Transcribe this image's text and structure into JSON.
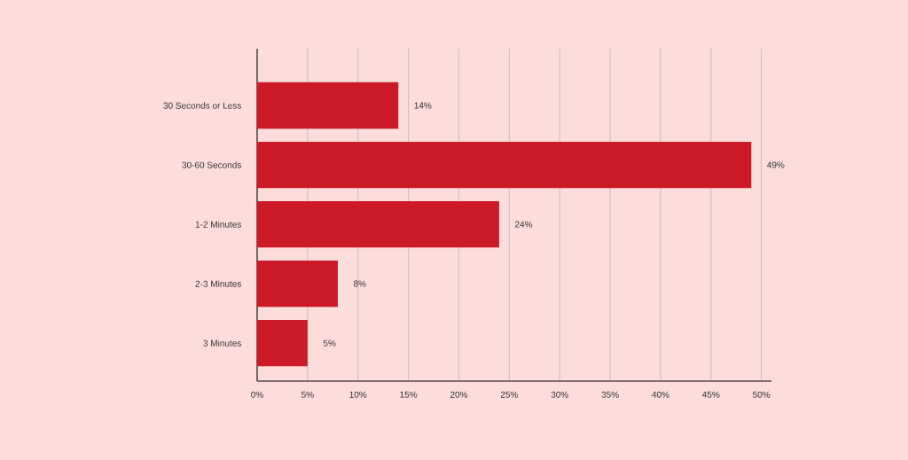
{
  "chart_data": {
    "type": "bar",
    "orientation": "horizontal",
    "categories": [
      "30 Seconds or Less",
      "30-60 Seconds",
      "1-2 Minutes",
      "2-3 Minutes",
      "3 Minutes"
    ],
    "values": [
      14,
      49,
      24,
      8,
      5
    ],
    "value_labels": [
      "14%",
      "49%",
      "24%",
      "8%",
      "5%"
    ],
    "color": "#cc1a26",
    "xlim": [
      0,
      51
    ],
    "xticks": [
      {
        "value": 0,
        "label": "0%"
      },
      {
        "value": 5,
        "label": "5%"
      },
      {
        "value": 10,
        "label": "10%"
      },
      {
        "value": 15,
        "label": "15%"
      },
      {
        "value": 20,
        "label": "20%"
      },
      {
        "value": 25,
        "label": "25%"
      },
      {
        "value": 30,
        "label": "30%"
      },
      {
        "value": 35,
        "label": "35%"
      },
      {
        "value": 40,
        "label": "40%"
      },
      {
        "value": 45,
        "label": "45%"
      },
      {
        "value": 50,
        "label": "50%"
      }
    ],
    "grid": "x"
  }
}
